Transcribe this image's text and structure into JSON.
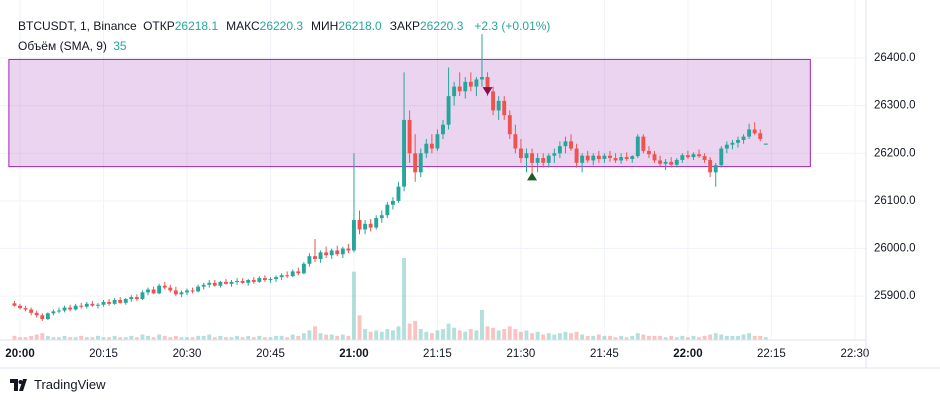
{
  "chart_data": {
    "type": "candlestick",
    "symbol": "BTCUSDT, 1, Binance",
    "legend": [
      {
        "label": "ОТКР",
        "value": "26218.1"
      },
      {
        "label": "МАКС",
        "value": "26220.3"
      },
      {
        "label": "МИН",
        "value": "26218.0"
      },
      {
        "label": "ЗАКР",
        "value": "26220.3"
      }
    ],
    "change": "+2.3 (+0.01%)",
    "volume_label": "Объём (SMA, 9)",
    "volume_value": "35",
    "brand": "TradingView",
    "up_color": "#26a69a",
    "down_color": "#ef5350",
    "xlim": [
      -1.8,
      152
    ],
    "ylim": [
      25808,
      26505
    ],
    "xticks": [
      {
        "value": 0,
        "label": "20:00"
      },
      {
        "value": 15,
        "label": "20:15"
      },
      {
        "value": 30,
        "label": "20:30"
      },
      {
        "value": 45,
        "label": "20:45"
      },
      {
        "value": 60,
        "label": "21:00"
      },
      {
        "value": 75,
        "label": "21:15"
      },
      {
        "value": 90,
        "label": "21:30"
      },
      {
        "value": 105,
        "label": "21:45"
      },
      {
        "value": 120,
        "label": "22:00"
      },
      {
        "value": 135,
        "label": "22:15"
      },
      {
        "value": 150,
        "label": "22:30"
      }
    ],
    "yticks": [
      {
        "value": 25900,
        "label": "25900.0"
      },
      {
        "value": 26000,
        "label": "26000.0"
      },
      {
        "value": 26100,
        "label": "26100.0"
      },
      {
        "value": 26200,
        "label": "26200.0"
      },
      {
        "value": 26300,
        "label": "26300.0"
      },
      {
        "value": 26400,
        "label": "26400.0"
      }
    ],
    "grid": true,
    "range_box": {
      "x0": -2,
      "x1": 142,
      "top": 26397,
      "bottom": 26172,
      "color": "#9c27b0"
    },
    "markers": [
      {
        "x": 84,
        "price": 26322,
        "direction": "down",
        "color": "#880e4f"
      },
      {
        "x": 92,
        "price": 26160,
        "direction": "up",
        "color": "#1b5e20"
      }
    ],
    "x": [
      -1,
      0,
      1,
      2,
      3,
      4,
      5,
      6,
      7,
      8,
      9,
      10,
      11,
      12,
      13,
      14,
      15,
      16,
      17,
      18,
      19,
      20,
      21,
      22,
      23,
      24,
      25,
      26,
      27,
      28,
      29,
      30,
      31,
      32,
      33,
      34,
      35,
      36,
      37,
      38,
      39,
      40,
      41,
      42,
      43,
      44,
      45,
      46,
      47,
      48,
      49,
      50,
      51,
      52,
      53,
      54,
      55,
      56,
      57,
      58,
      59,
      60,
      61,
      62,
      63,
      64,
      65,
      66,
      67,
      68,
      69,
      70,
      71,
      72,
      73,
      74,
      75,
      76,
      77,
      78,
      79,
      80,
      81,
      82,
      83,
      84,
      85,
      86,
      87,
      88,
      89,
      90,
      91,
      92,
      93,
      94,
      95,
      96,
      97,
      98,
      99,
      100,
      101,
      102,
      103,
      104,
      105,
      106,
      107,
      108,
      109,
      110,
      111,
      112,
      113,
      114,
      115,
      116,
      117,
      118,
      119,
      120,
      121,
      122,
      123,
      124,
      125,
      126,
      127,
      128,
      129,
      130,
      131,
      132,
      133,
      134
    ],
    "ohlc": [
      [
        25885,
        25890,
        25878,
        25880
      ],
      [
        25880,
        25884,
        25872,
        25875
      ],
      [
        25875,
        25880,
        25868,
        25872
      ],
      [
        25872,
        25876,
        25860,
        25865
      ],
      [
        25865,
        25870,
        25855,
        25860
      ],
      [
        25860,
        25864,
        25848,
        25852
      ],
      [
        25852,
        25866,
        25850,
        25864
      ],
      [
        25864,
        25872,
        25860,
        25868
      ],
      [
        25868,
        25876,
        25864,
        25870
      ],
      [
        25870,
        25880,
        25866,
        25876
      ],
      [
        25876,
        25882,
        25868,
        25872
      ],
      [
        25872,
        25884,
        25870,
        25880
      ],
      [
        25880,
        25886,
        25874,
        25878
      ],
      [
        25878,
        25888,
        25874,
        25884
      ],
      [
        25884,
        25890,
        25878,
        25880
      ],
      [
        25880,
        25886,
        25874,
        25882
      ],
      [
        25882,
        25892,
        25878,
        25888
      ],
      [
        25888,
        25894,
        25880,
        25884
      ],
      [
        25884,
        25896,
        25882,
        25892
      ],
      [
        25892,
        25898,
        25884,
        25886
      ],
      [
        25886,
        25896,
        25882,
        25894
      ],
      [
        25894,
        25902,
        25888,
        25898
      ],
      [
        25898,
        25904,
        25890,
        25894
      ],
      [
        25894,
        25912,
        25892,
        25908
      ],
      [
        25908,
        25918,
        25902,
        25914
      ],
      [
        25914,
        25920,
        25904,
        25906
      ],
      [
        25906,
        25926,
        25904,
        25922
      ],
      [
        25922,
        25930,
        25914,
        25918
      ],
      [
        25918,
        25924,
        25908,
        25912
      ],
      [
        25912,
        25920,
        25900,
        25904
      ],
      [
        25904,
        25912,
        25898,
        25908
      ],
      [
        25908,
        25916,
        25902,
        25912
      ],
      [
        25912,
        25918,
        25906,
        25910
      ],
      [
        25910,
        25924,
        25908,
        25920
      ],
      [
        25920,
        25928,
        25914,
        25924
      ],
      [
        25924,
        25934,
        25918,
        25928
      ],
      [
        25928,
        25934,
        25920,
        25922
      ],
      [
        25922,
        25932,
        25918,
        25930
      ],
      [
        25930,
        25936,
        25924,
        25926
      ],
      [
        25926,
        25934,
        25920,
        25930
      ],
      [
        25930,
        25938,
        25924,
        25932
      ],
      [
        25932,
        25938,
        25926,
        25928
      ],
      [
        25928,
        25936,
        25922,
        25934
      ],
      [
        25934,
        25940,
        25926,
        25930
      ],
      [
        25930,
        25942,
        25928,
        25938
      ],
      [
        25938,
        25944,
        25930,
        25934
      ],
      [
        25934,
        25940,
        25928,
        25936
      ],
      [
        25936,
        25944,
        25930,
        25940
      ],
      [
        25940,
        25948,
        25934,
        25944
      ],
      [
        25944,
        25952,
        25938,
        25942
      ],
      [
        25942,
        25956,
        25940,
        25952
      ],
      [
        25952,
        25960,
        25944,
        25948
      ],
      [
        25948,
        25972,
        25946,
        25968
      ],
      [
        25968,
        25990,
        25962,
        25984
      ],
      [
        25984,
        26020,
        25972,
        25978
      ],
      [
        25978,
        25996,
        25970,
        25992
      ],
      [
        25992,
        26004,
        25980,
        25986
      ],
      [
        25986,
        26000,
        25978,
        25996
      ],
      [
        25996,
        26006,
        25984,
        25988
      ],
      [
        25988,
        26004,
        25980,
        26000
      ],
      [
        26000,
        26010,
        25990,
        25996
      ],
      [
        25996,
        26200,
        25992,
        26060
      ],
      [
        26060,
        26080,
        26030,
        26040
      ],
      [
        26040,
        26060,
        26030,
        26052
      ],
      [
        26052,
        26062,
        26036,
        26044
      ],
      [
        26044,
        26070,
        26040,
        26064
      ],
      [
        26064,
        26080,
        26054,
        26070
      ],
      [
        26070,
        26098,
        26064,
        26092
      ],
      [
        26092,
        26108,
        26082,
        26100
      ],
      [
        26100,
        26140,
        26096,
        26130
      ],
      [
        26130,
        26370,
        26120,
        26270
      ],
      [
        26270,
        26290,
        26180,
        26200
      ],
      [
        26200,
        26240,
        26140,
        26160
      ],
      [
        26160,
        26210,
        26150,
        26200
      ],
      [
        26200,
        26230,
        26190,
        26220
      ],
      [
        26220,
        26240,
        26200,
        26210
      ],
      [
        26210,
        26250,
        26205,
        26240
      ],
      [
        26240,
        26270,
        26230,
        26260
      ],
      [
        26260,
        26380,
        26250,
        26320
      ],
      [
        26320,
        26350,
        26300,
        26340
      ],
      [
        26340,
        26370,
        26320,
        26330
      ],
      [
        26330,
        26360,
        26315,
        26350
      ],
      [
        26350,
        26370,
        26330,
        26340
      ],
      [
        26340,
        26360,
        26320,
        26355
      ],
      [
        26355,
        26450,
        26340,
        26360
      ],
      [
        26360,
        26370,
        26320,
        26330
      ],
      [
        26330,
        26340,
        26280,
        26290
      ],
      [
        26290,
        26320,
        26270,
        26310
      ],
      [
        26310,
        26320,
        26270,
        26280
      ],
      [
        26280,
        26290,
        26230,
        26240
      ],
      [
        26240,
        26260,
        26200,
        26210
      ],
      [
        26210,
        26230,
        26180,
        26190
      ],
      [
        26190,
        26210,
        26160,
        26200
      ],
      [
        26200,
        26210,
        26150,
        26180
      ],
      [
        26180,
        26200,
        26160,
        26190
      ],
      [
        26190,
        26200,
        26170,
        26180
      ],
      [
        26180,
        26200,
        26170,
        26195
      ],
      [
        26195,
        26210,
        26180,
        26200
      ],
      [
        26200,
        26225,
        26190,
        26215
      ],
      [
        26215,
        26235,
        26200,
        26225
      ],
      [
        26225,
        26240,
        26205,
        26210
      ],
      [
        26210,
        26220,
        26170,
        26180
      ],
      [
        26180,
        26200,
        26160,
        26195
      ],
      [
        26195,
        26205,
        26180,
        26185
      ],
      [
        26185,
        26200,
        26175,
        26195
      ],
      [
        26195,
        26205,
        26180,
        26188
      ],
      [
        26188,
        26200,
        26180,
        26195
      ],
      [
        26195,
        26205,
        26182,
        26190
      ],
      [
        26190,
        26200,
        26180,
        26185
      ],
      [
        26185,
        26200,
        26178,
        26192
      ],
      [
        26192,
        26202,
        26184,
        26188
      ],
      [
        26188,
        26196,
        26180,
        26194
      ],
      [
        26194,
        26240,
        26190,
        26235
      ],
      [
        26235,
        26240,
        26200,
        26205
      ],
      [
        26205,
        26215,
        26190,
        26198
      ],
      [
        26198,
        26205,
        26180,
        26185
      ],
      [
        26185,
        26195,
        26172,
        26178
      ],
      [
        26178,
        26188,
        26165,
        26182
      ],
      [
        26182,
        26192,
        26170,
        26176
      ],
      [
        26176,
        26190,
        26170,
        26186
      ],
      [
        26186,
        26200,
        26180,
        26196
      ],
      [
        26196,
        26205,
        26188,
        26192
      ],
      [
        26192,
        26202,
        26186,
        26198
      ],
      [
        26198,
        26208,
        26190,
        26194
      ],
      [
        26194,
        26200,
        26180,
        26186
      ],
      [
        26186,
        26192,
        26150,
        26160
      ],
      [
        26160,
        26180,
        26130,
        26175
      ],
      [
        26175,
        26215,
        26170,
        26210
      ],
      [
        26210,
        26225,
        26200,
        26218
      ],
      [
        26218,
        26228,
        26208,
        26222
      ],
      [
        26222,
        26235,
        26212,
        26228
      ],
      [
        26228,
        26240,
        26220,
        26235
      ],
      [
        26235,
        26262,
        26230,
        26250
      ],
      [
        26250,
        26265,
        26238,
        26242
      ],
      [
        26242,
        26250,
        26225,
        26230
      ],
      [
        26218.1,
        26220.3,
        26218.0,
        26220.3
      ]
    ],
    "volume": [
      3,
      2,
      2,
      3,
      4,
      5,
      3,
      2,
      2,
      3,
      2,
      2,
      3,
      2,
      2,
      3,
      2,
      2,
      3,
      2,
      2,
      3,
      2,
      4,
      3,
      2,
      4,
      3,
      2,
      3,
      2,
      2,
      2,
      3,
      3,
      4,
      2,
      3,
      2,
      2,
      3,
      2,
      3,
      2,
      3,
      2,
      2,
      3,
      3,
      2,
      4,
      3,
      5,
      7,
      10,
      5,
      4,
      4,
      3,
      4,
      3,
      50,
      18,
      8,
      6,
      7,
      6,
      8,
      7,
      10,
      60,
      12,
      14,
      8,
      6,
      5,
      7,
      8,
      12,
      9,
      7,
      6,
      8,
      7,
      22,
      10,
      9,
      7,
      8,
      10,
      8,
      6,
      7,
      5,
      6,
      4,
      5,
      4,
      5,
      6,
      5,
      6,
      4,
      3,
      3,
      4,
      3,
      3,
      2,
      3,
      2,
      3,
      5,
      4,
      3,
      3,
      3,
      2,
      3,
      2,
      3,
      2,
      3,
      2,
      3,
      4,
      5,
      4,
      3,
      3,
      3,
      4,
      5,
      3,
      3,
      2
    ]
  }
}
